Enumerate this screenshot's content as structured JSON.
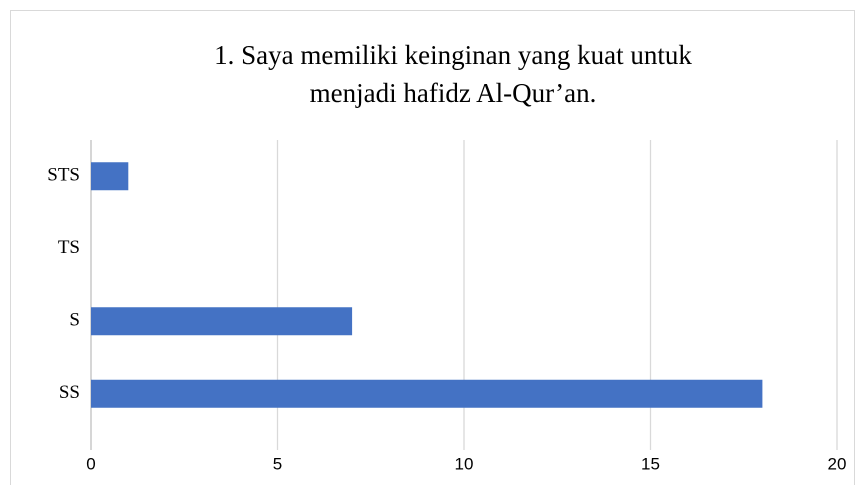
{
  "chart_data": {
    "type": "bar",
    "orientation": "horizontal",
    "title": [
      "1. Saya memiliki keinginan yang kuat untuk",
      "menjadi hafidz Al-Qur’an."
    ],
    "categories": [
      "STS",
      "TS",
      "S",
      "SS"
    ],
    "values": [
      1,
      0,
      7,
      18
    ],
    "color": "#4472c4",
    "xlim": [
      0,
      20
    ],
    "xticks": [
      0,
      5,
      10,
      15,
      20
    ],
    "grid": true
  }
}
